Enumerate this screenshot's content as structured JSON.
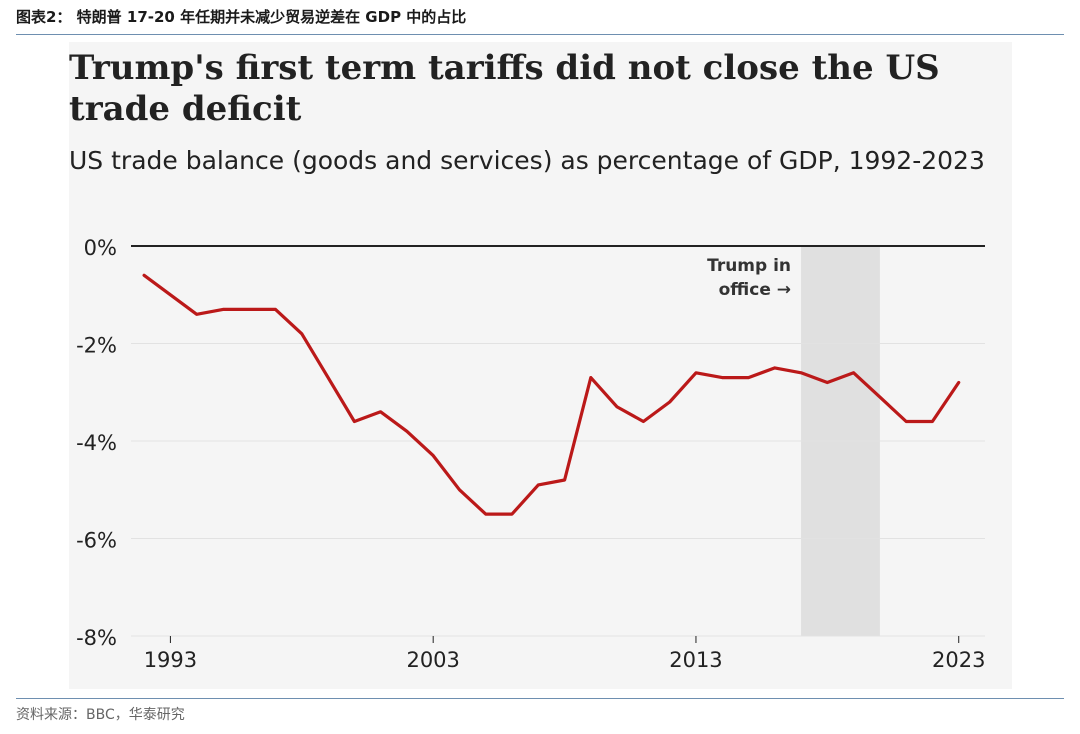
{
  "figure_label": "图表2：  特朗普 17-20 年任期并未减少贸易逆差在 GDP 中的占比",
  "source_note": "资料来源：BBC，华泰研究",
  "chart_data": {
    "type": "line",
    "title": "Trump's first term tariffs did not close the US trade deficit",
    "subtitle": "US trade balance (goods and services) as percentage of GDP, 1992-2023",
    "xlabel": "",
    "ylabel": "",
    "xlim": [
      1991.5,
      2024
    ],
    "ylim": [
      -8,
      0
    ],
    "x_ticks": [
      1993,
      2003,
      2013,
      2023
    ],
    "y_ticks": [
      0,
      -2,
      -4,
      -6,
      -8
    ],
    "y_tick_labels": [
      "0%",
      "-2%",
      "-4%",
      "-6%",
      "-8%"
    ],
    "grid": true,
    "series": [
      {
        "name": "US trade balance (% of GDP)",
        "color": "#bb1919",
        "x": [
          1992,
          1993,
          1994,
          1995,
          1996,
          1997,
          1998,
          1999,
          2000,
          2001,
          2002,
          2003,
          2004,
          2005,
          2006,
          2007,
          2008,
          2009,
          2010,
          2011,
          2012,
          2013,
          2014,
          2015,
          2016,
          2017,
          2018,
          2019,
          2020,
          2021,
          2022,
          2023
        ],
        "values": [
          -0.6,
          -1.0,
          -1.4,
          -1.3,
          -1.3,
          -1.3,
          -1.8,
          -2.7,
          -3.6,
          -3.4,
          -3.8,
          -4.3,
          -5.0,
          -5.5,
          -5.5,
          -4.9,
          -4.8,
          -2.7,
          -3.3,
          -3.6,
          -3.2,
          -2.6,
          -2.7,
          -2.7,
          -2.5,
          -2.6,
          -2.8,
          -2.6,
          -3.1,
          -3.6,
          -3.6,
          -2.8
        ]
      }
    ],
    "shaded_region": {
      "x_start": 2017,
      "x_end": 2020,
      "color": "#e0e0e0"
    },
    "annotation": {
      "line1": "Trump in",
      "line2": "office →",
      "x": 2017
    }
  }
}
